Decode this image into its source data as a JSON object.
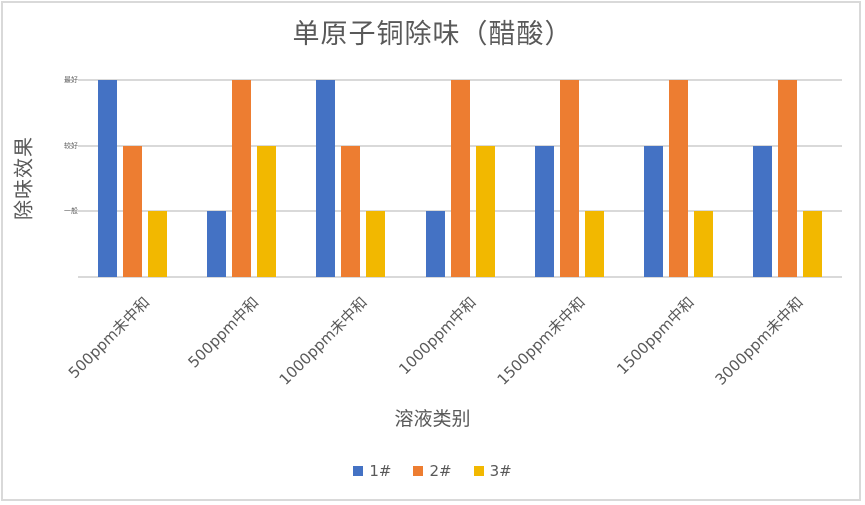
{
  "chart_data": {
    "type": "bar",
    "title": "单原子铜除味（醋酸）",
    "xlabel": "溶液类别",
    "ylabel": "除味效果",
    "y_ticks": [
      "一般",
      "较好",
      "最好"
    ],
    "y_tick_values": [
      1,
      2,
      3
    ],
    "ylim": [
      0,
      3
    ],
    "grid": true,
    "legend_position": "bottom",
    "categories": [
      "500ppm未中和",
      "500ppm中和",
      "1000ppm未中和",
      "1000ppm中和",
      "1500ppm未中和",
      "1500ppm中和",
      "3000ppm未中和"
    ],
    "series": [
      {
        "name": "1#",
        "color": "#4472c4",
        "values": [
          3,
          1,
          3,
          1,
          2,
          2,
          2
        ]
      },
      {
        "name": "2#",
        "color": "#ed7d31",
        "values": [
          2,
          3,
          2,
          3,
          3,
          3,
          3
        ]
      },
      {
        "name": "3#",
        "color": "#ffc000",
        "values": [
          1,
          2,
          1,
          2,
          1,
          1,
          1
        ]
      }
    ]
  },
  "colors": {
    "series_1": "#4472c4",
    "series_2": "#ed7d31",
    "series_3": "#f2b800",
    "text": "#595959",
    "grid": "#d9d9d9"
  }
}
